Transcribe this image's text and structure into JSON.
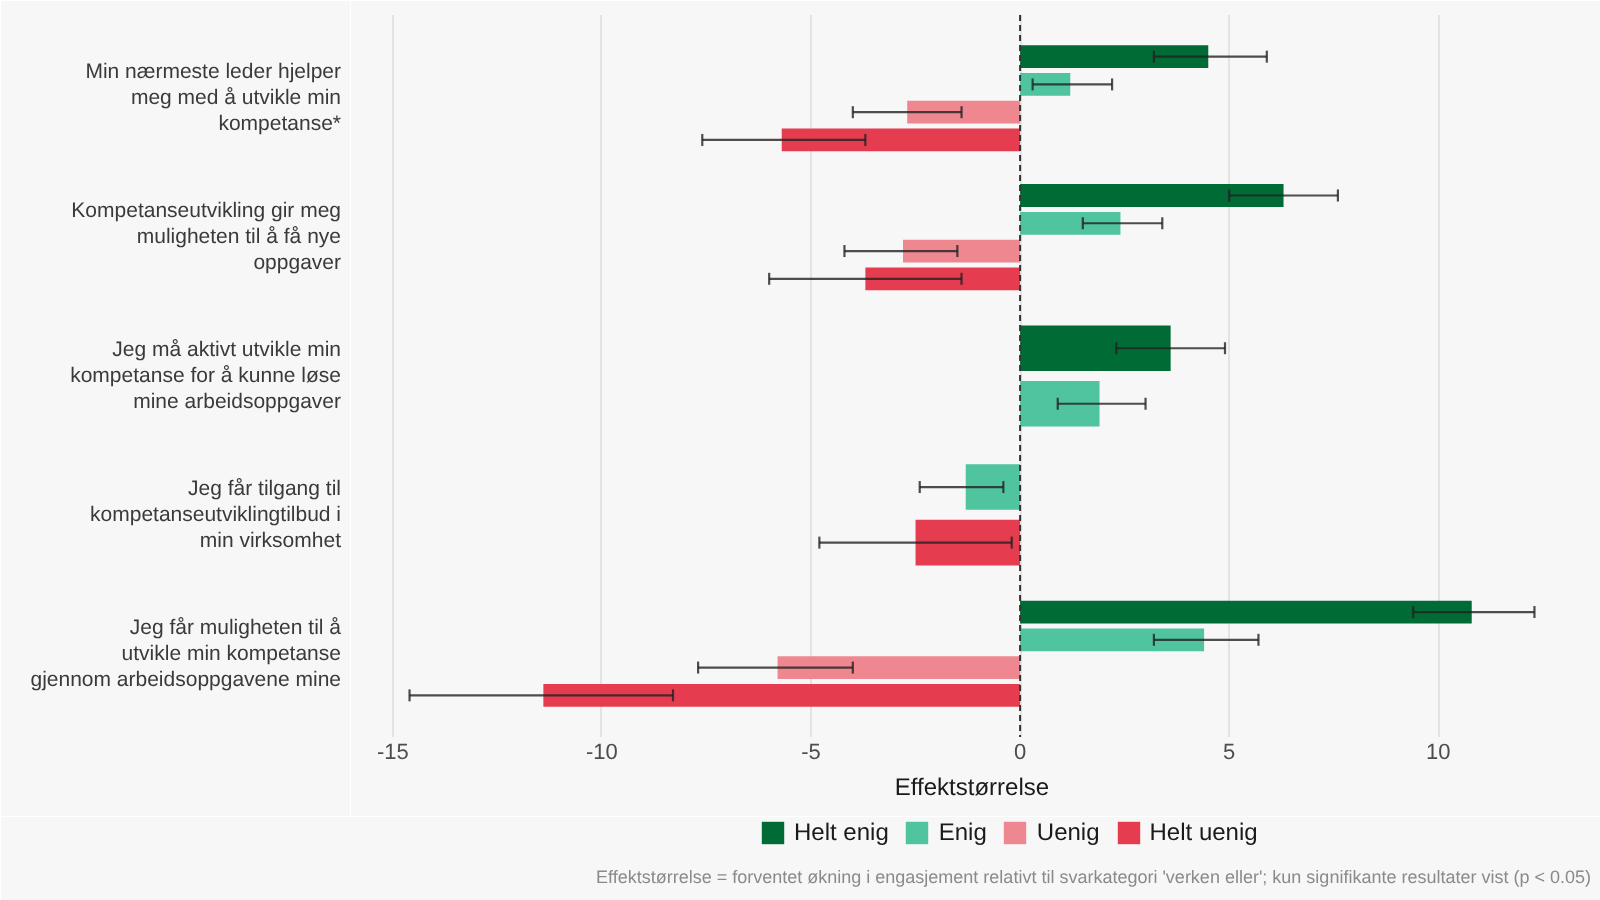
{
  "chart_data": {
    "type": "bar",
    "orientation": "horizontal",
    "categories": [
      "Min nærmeste leder hjelper meg med å utvikle min kompetanse*",
      "Kompetanseutvikling gir meg muligheten til å få nye oppgaver",
      "Jeg må aktivt utvikle min kompetanse for å kunne løse mine arbeidsoppgaver",
      "Jeg får tilgang til kompetanseutviklingtilbud i min virksomhet",
      "Jeg får muligheten til å utvikle min kompetanse gjennom arbeidsoppgavene mine"
    ],
    "series": [
      {
        "name": "Helt enig",
        "color": "#006b35",
        "values": [
          4.5,
          6.3,
          3.6,
          null,
          10.8
        ],
        "errors": [
          [
            3.2,
            5.9
          ],
          [
            5.0,
            7.6
          ],
          [
            2.3,
            4.9
          ],
          null,
          [
            9.4,
            12.3
          ]
        ]
      },
      {
        "name": "Enig",
        "color": "#4fc49f",
        "values": [
          1.2,
          2.4,
          1.9,
          -1.3,
          4.4
        ],
        "errors": [
          [
            0.3,
            2.2
          ],
          [
            1.5,
            3.4
          ],
          [
            0.9,
            3.0
          ],
          [
            -2.4,
            -0.4
          ],
          [
            3.2,
            5.7
          ]
        ]
      },
      {
        "name": "Uenig",
        "color": "#ef8790",
        "values": [
          -2.7,
          -2.8,
          null,
          null,
          -5.8
        ],
        "errors": [
          [
            -4.0,
            -1.4
          ],
          [
            -4.2,
            -1.5
          ],
          null,
          null,
          [
            -7.7,
            -4.0
          ]
        ]
      },
      {
        "name": "Helt uenig",
        "color": "#e63c50",
        "values": [
          -5.7,
          -3.7,
          null,
          -2.5,
          -11.4
        ],
        "errors": [
          [
            -7.6,
            -3.7
          ],
          [
            -6.0,
            -1.4
          ],
          null,
          [
            -4.8,
            -0.2
          ],
          [
            -14.6,
            -8.3
          ]
        ]
      }
    ],
    "xlabel": "Effektstørrelse",
    "xlim": [
      -16,
      13.7
    ],
    "xticks": [
      -15,
      -10,
      -5,
      0,
      5,
      10
    ],
    "grid": "x",
    "legend": "bottom",
    "ref_lines": [
      {
        "axis": "x",
        "value": 0,
        "color": "#333333",
        "line_style": "dashed"
      }
    ],
    "annotations": [
      "Effektstørrelse = forventet økning i engasjement relativt til svarkategori 'verken eller'; kun signifikante resultater vist (p < 0.05)"
    ]
  }
}
